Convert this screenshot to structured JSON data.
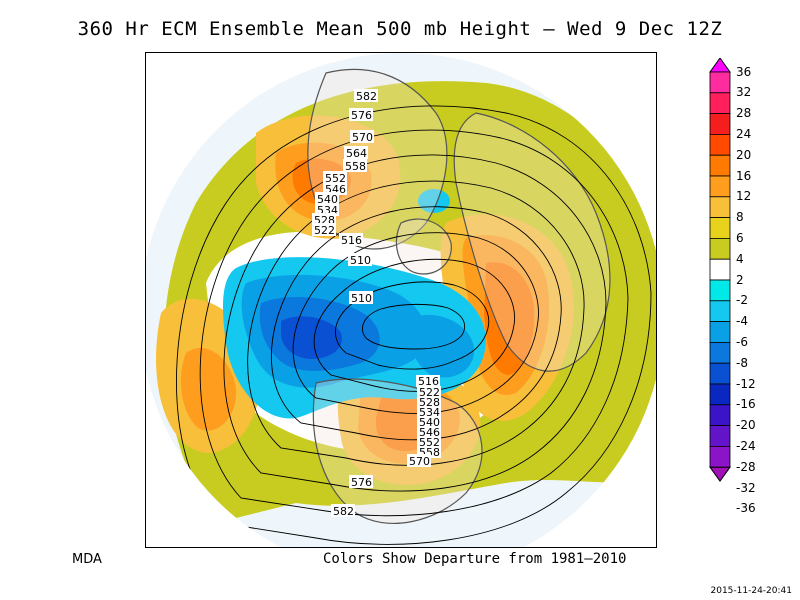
{
  "title": "360 Hr ECM Ensemble Mean 500 mb Height — Wed 9 Dec 12Z",
  "credit": "MDA",
  "caption": "Colors Show Departure from 1981–2010",
  "timestamp": "2015-11-24-20:41",
  "colorbar": {
    "labels": [
      "36",
      "32",
      "28",
      "24",
      "20",
      "16",
      "12",
      "8",
      "6",
      "4",
      "2",
      "-2",
      "-4",
      "-6",
      "-8",
      "-12",
      "-16",
      "-20",
      "-24",
      "-28",
      "-32",
      "-36"
    ],
    "colors": [
      "#ff00ff",
      "#ff2ca0",
      "#ff1f5a",
      "#f51e1e",
      "#ff4a00",
      "#ff7a00",
      "#ff9e1e",
      "#f7bf3a",
      "#e8d21c",
      "#c9cc20",
      "#ffffff",
      "#00e8e8",
      "#14c8f0",
      "#0aa0e6",
      "#0a78dc",
      "#0a50d2",
      "#0a28c0",
      "#3c14c8",
      "#6414c8",
      "#8c14c8",
      "#a010b4"
    ]
  },
  "map": {
    "contour_labels": [
      "582",
      "576",
      "570",
      "564",
      "558",
      "552",
      "546",
      "540",
      "534",
      "528",
      "522",
      "516",
      "510",
      "510",
      "516",
      "522",
      "528",
      "534",
      "540",
      "546",
      "552",
      "558",
      "564",
      "570",
      "576",
      "582"
    ]
  },
  "colors": {
    "background_ocean": "#eef6fb",
    "land": "#f4e6dc",
    "coast": "#555555"
  }
}
